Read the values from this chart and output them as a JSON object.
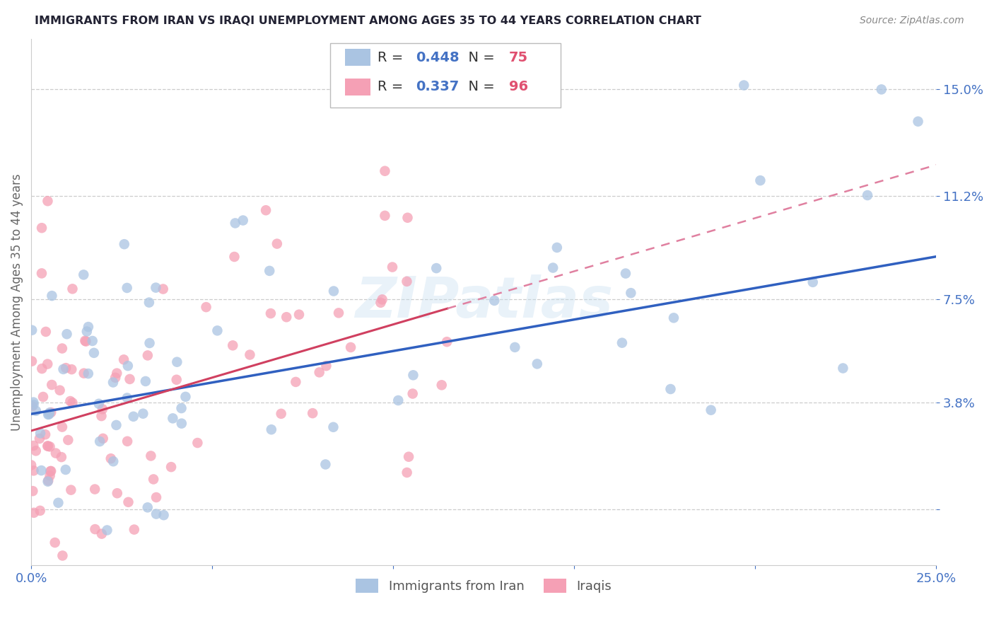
{
  "title": "IMMIGRANTS FROM IRAN VS IRAQI UNEMPLOYMENT AMONG AGES 35 TO 44 YEARS CORRELATION CHART",
  "source": "Source: ZipAtlas.com",
  "ylabel": "Unemployment Among Ages 35 to 44 years",
  "xlim": [
    0.0,
    0.25
  ],
  "ylim": [
    -0.02,
    0.168
  ],
  "yticks": [
    0.0,
    0.038,
    0.075,
    0.112,
    0.15
  ],
  "ytick_labels": [
    "",
    "3.8%",
    "7.5%",
    "11.2%",
    "15.0%"
  ],
  "xticks": [
    0.0,
    0.05,
    0.1,
    0.15,
    0.2,
    0.25
  ],
  "xtick_labels": [
    "0.0%",
    "",
    "",
    "",
    "",
    "25.0%"
  ],
  "iran_R": 0.448,
  "iran_N": 75,
  "iraq_R": 0.337,
  "iraq_N": 96,
  "iran_color": "#aac4e2",
  "iraq_color": "#f5a0b5",
  "iran_line_color": "#3060c0",
  "iraq_line_color": "#d04060",
  "iraq_line_dashed_color": "#e080a0",
  "title_color": "#222233",
  "tick_color": "#4472c4",
  "legend_R_color": "#4472c4",
  "legend_N_color": "#e05070",
  "watermark": "ZIPatlas",
  "background_color": "#ffffff",
  "grid_color": "#cccccc",
  "iran_line_intercept": 0.034,
  "iran_line_slope": 0.225,
  "iraq_line_intercept": 0.028,
  "iraq_line_slope": 0.38
}
